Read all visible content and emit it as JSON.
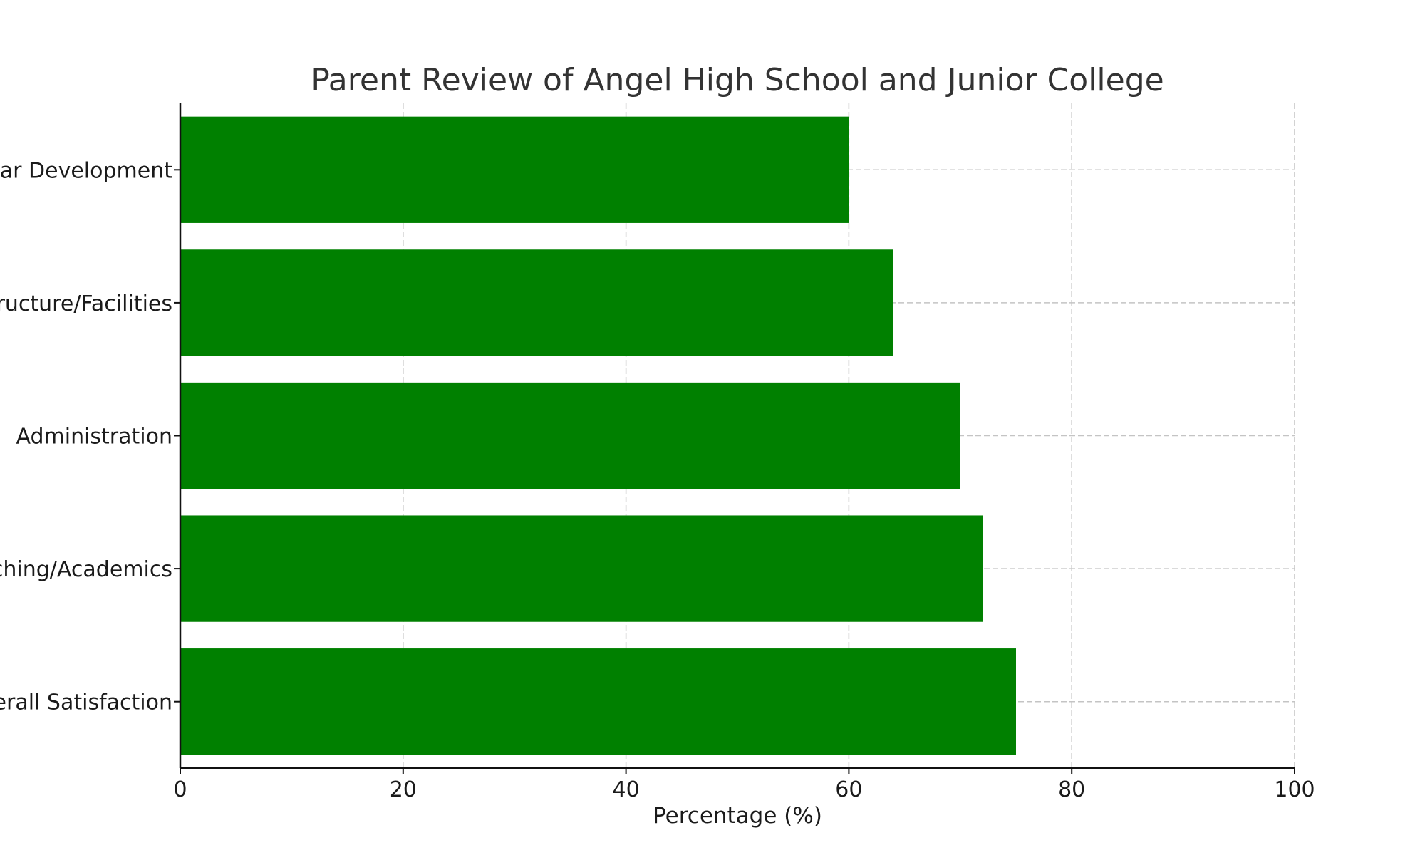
{
  "chart_data": {
    "type": "bar",
    "orientation": "horizontal",
    "title": "Parent Review of Angel High School and Junior College",
    "xlabel": "Percentage (%)",
    "ylabel": "",
    "xlim": [
      0,
      100
    ],
    "xticks": [
      0,
      20,
      40,
      60,
      80,
      100
    ],
    "grid": true,
    "bar_color": "#008000",
    "categories": [
      "Overall Satisfaction",
      "Teaching/Academics",
      "Administration",
      "Infrastructure/Facilities",
      "Extracurricular Development"
    ],
    "values": [
      75,
      72,
      70,
      64,
      60
    ]
  }
}
